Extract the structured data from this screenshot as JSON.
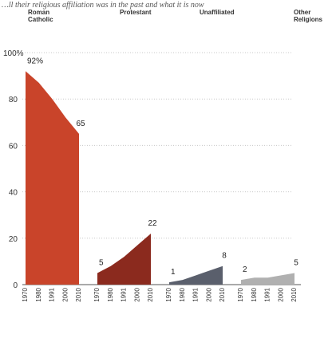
{
  "title": "…ll their religious affiliation was in the past and what it is now",
  "chart_data": {
    "type": "area",
    "x": [
      "1970",
      "1980",
      "1991",
      "2000",
      "2010"
    ],
    "yticks": [
      "0",
      "20",
      "40",
      "60",
      "80",
      "100%"
    ],
    "ylim": [
      0,
      100
    ],
    "grid": true,
    "panels": [
      {
        "name": "Roman Catholic",
        "name_lines": [
          "Roman",
          "Catholic"
        ],
        "values": [
          92,
          87,
          80,
          72,
          65
        ],
        "labels": [
          {
            "text": "92%",
            "index": 0
          },
          {
            "text": "65",
            "index": 4
          }
        ],
        "color": "#c9442a"
      },
      {
        "name": "Protestant",
        "name_lines": [
          "Protestant"
        ],
        "values": [
          5,
          8,
          12,
          17,
          22
        ],
        "labels": [
          {
            "text": "5",
            "index": 0
          },
          {
            "text": "22",
            "index": 4
          }
        ],
        "color": "#8b2a1e"
      },
      {
        "name": "Unaffiliated",
        "name_lines": [
          "Unaffiliated"
        ],
        "values": [
          1,
          2,
          4,
          6,
          8
        ],
        "labels": [
          {
            "text": "1",
            "index": 0
          },
          {
            "text": "8",
            "index": 4
          }
        ],
        "color": "#5a5f6c"
      },
      {
        "name": "Other Religions",
        "name_lines": [
          "Other",
          "Religions"
        ],
        "values": [
          2,
          3,
          3,
          4,
          5
        ],
        "labels": [
          {
            "text": "2",
            "index": 0
          },
          {
            "text": "5",
            "index": 4
          }
        ],
        "color": "#b0b0b0"
      }
    ]
  }
}
